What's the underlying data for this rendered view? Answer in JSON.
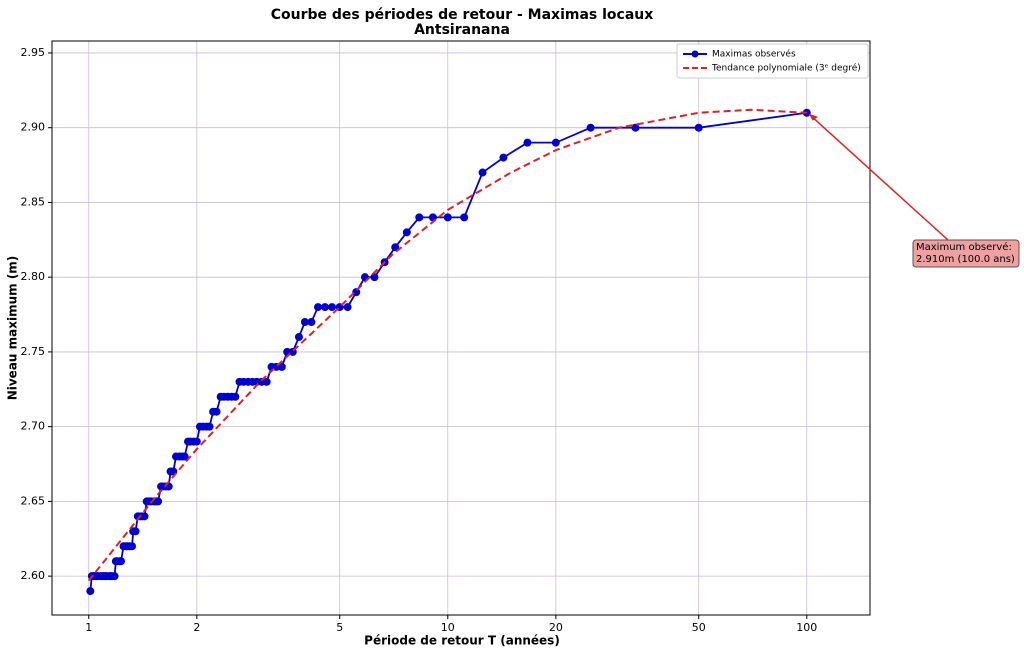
{
  "chart_data": {
    "type": "line",
    "title": "Courbe des périodes de retour - Maximas locaux",
    "subtitle": "Antsiranana",
    "x_label": "Période de retour T (années)",
    "y_label": "Niveau maximum (m)",
    "x_scale": "log",
    "grid": true,
    "legend": "upper right",
    "xlim": [
      0.79,
      150
    ],
    "xticks": [
      1,
      2,
      5,
      10,
      20,
      50,
      100
    ],
    "ylim": [
      2.574,
      2.958
    ],
    "yticks": [
      {
        "value": 2.6,
        "label": "2.60"
      },
      2.65,
      {
        "value": 2.7,
        "label": "2.70"
      },
      2.75,
      {
        "value": 2.8,
        "label": "2.80"
      },
      2.85,
      {
        "value": 2.9,
        "label": "2.90"
      },
      2.95
    ],
    "series": [
      {
        "name": "Maximas observés",
        "color": "#0000cc",
        "style": "solid",
        "marker": true,
        "x": [
          1.01,
          1.02,
          1.03,
          1.04,
          1.05,
          1.06,
          1.08,
          1.09,
          1.1,
          1.11,
          1.12,
          1.14,
          1.15,
          1.16,
          1.18,
          1.19,
          1.2,
          1.22,
          1.23,
          1.25,
          1.27,
          1.28,
          1.3,
          1.32,
          1.33,
          1.35,
          1.37,
          1.39,
          1.41,
          1.43,
          1.45,
          1.47,
          1.49,
          1.52,
          1.54,
          1.56,
          1.59,
          1.61,
          1.64,
          1.67,
          1.69,
          1.72,
          1.75,
          1.79,
          1.82,
          1.85,
          1.89,
          1.92,
          1.96,
          2,
          2.04,
          2.08,
          2.13,
          2.17,
          2.22,
          2.27,
          2.33,
          2.38,
          2.44,
          2.5,
          2.56,
          2.63,
          2.7,
          2.78,
          2.86,
          2.94,
          3.03,
          3.13,
          3.23,
          3.33,
          3.45,
          3.57,
          3.7,
          3.85,
          4,
          4.17,
          4.35,
          4.55,
          4.76,
          5,
          5.26,
          5.56,
          5.88,
          6.25,
          6.67,
          7.14,
          7.69,
          8.33,
          9.09,
          10,
          11.11,
          12.5,
          14.29,
          16.67,
          20,
          25,
          33.33,
          50,
          100
        ],
        "values": [
          2.59,
          2.6,
          2.6,
          2.6,
          2.6,
          2.6,
          2.6,
          2.6,
          2.6,
          2.6,
          2.6,
          2.6,
          2.6,
          2.6,
          2.6,
          2.61,
          2.61,
          2.61,
          2.61,
          2.62,
          2.62,
          2.62,
          2.62,
          2.62,
          2.63,
          2.63,
          2.64,
          2.64,
          2.64,
          2.64,
          2.65,
          2.65,
          2.65,
          2.65,
          2.65,
          2.65,
          2.66,
          2.66,
          2.66,
          2.66,
          2.67,
          2.67,
          2.68,
          2.68,
          2.68,
          2.68,
          2.69,
          2.69,
          2.69,
          2.69,
          2.7,
          2.7,
          2.7,
          2.7,
          2.71,
          2.71,
          2.72,
          2.72,
          2.72,
          2.72,
          2.72,
          2.73,
          2.73,
          2.73,
          2.73,
          2.73,
          2.73,
          2.73,
          2.74,
          2.74,
          2.74,
          2.75,
          2.75,
          2.76,
          2.77,
          2.77,
          2.78,
          2.78,
          2.78,
          2.78,
          2.78,
          2.79,
          2.8,
          2.8,
          2.81,
          2.82,
          2.83,
          2.84,
          2.84,
          2.84,
          2.84,
          2.87,
          2.88,
          2.89,
          2.89,
          2.9,
          2.9,
          2.9,
          2.91
        ]
      },
      {
        "name": "Tendance polynomiale (3ᵉ degré)",
        "color": "#dd2222",
        "style": "dashed",
        "marker": false,
        "x": [
          1,
          1.5,
          2,
          3,
          5,
          7,
          10,
          15,
          20,
          30,
          50,
          70,
          100
        ],
        "values": [
          2.597,
          2.65,
          2.685,
          2.73,
          2.78,
          2.815,
          2.845,
          2.87,
          2.885,
          2.9,
          2.91,
          2.912,
          2.91
        ]
      }
    ],
    "annotation": {
      "lines": [
        "Maximum observé:",
        "2.910m (100.0 ans)"
      ],
      "x": 100,
      "y": 2.91
    }
  }
}
